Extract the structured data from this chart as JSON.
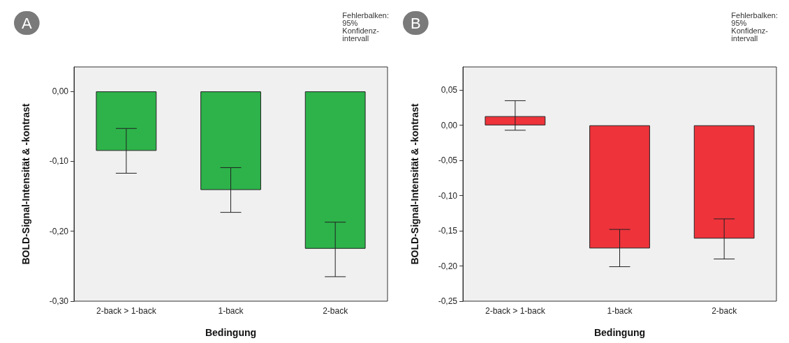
{
  "chart_data": [
    {
      "type": "bar",
      "xlabel": "Bedingung",
      "ylabel": "BOLD-Signal-Intensität & -kontrast",
      "categories": [
        "2-back > 1-back",
        "1-back",
        "2-back"
      ],
      "values": [
        -0.085,
        -0.141,
        -0.225
      ],
      "color": "#2db34a",
      "errors": [
        [
          -0.117,
          -0.053
        ],
        [
          -0.173,
          -0.109
        ],
        [
          -0.265,
          -0.187
        ]
      ],
      "ylim": [
        -0.3,
        0.035
      ],
      "yticks": [
        {
          "value": -0.3,
          "label": "-0,30"
        },
        {
          "value": -0.2,
          "label": "-0,20"
        },
        {
          "value": -0.1,
          "label": "-0,10"
        },
        {
          "value": 0,
          "label": "0,00"
        }
      ],
      "grid": false,
      "annotations": [
        "A",
        "Fehlerbalken:\n95%\nKonfidenz-\nintervall"
      ]
    },
    {
      "type": "bar",
      "xlabel": "Bedingung",
      "ylabel": "BOLD-Signal-Intensität & -kontrast",
      "categories": [
        "2-back > 1-back",
        "1-back",
        "2-back"
      ],
      "values": [
        0.013,
        -0.175,
        -0.161
      ],
      "color": "#ee333b",
      "errors": [
        [
          -0.007,
          0.035
        ],
        [
          -0.201,
          -0.148
        ],
        [
          -0.19,
          -0.133
        ]
      ],
      "ylim": [
        -0.25,
        0.083
      ],
      "yticks": [
        {
          "value": -0.25,
          "label": "-0,25"
        },
        {
          "value": -0.2,
          "label": "-0,20"
        },
        {
          "value": -0.15,
          "label": "-0,15"
        },
        {
          "value": -0.1,
          "label": "-0,10"
        },
        {
          "value": -0.05,
          "label": "-0,05"
        },
        {
          "value": 0,
          "label": "0,00"
        },
        {
          "value": 0.05,
          "label": "0,05"
        }
      ],
      "grid": false,
      "annotations": [
        "B",
        "Fehlerbalken:\n95%\nKonfidenz-\nintervall"
      ]
    }
  ]
}
